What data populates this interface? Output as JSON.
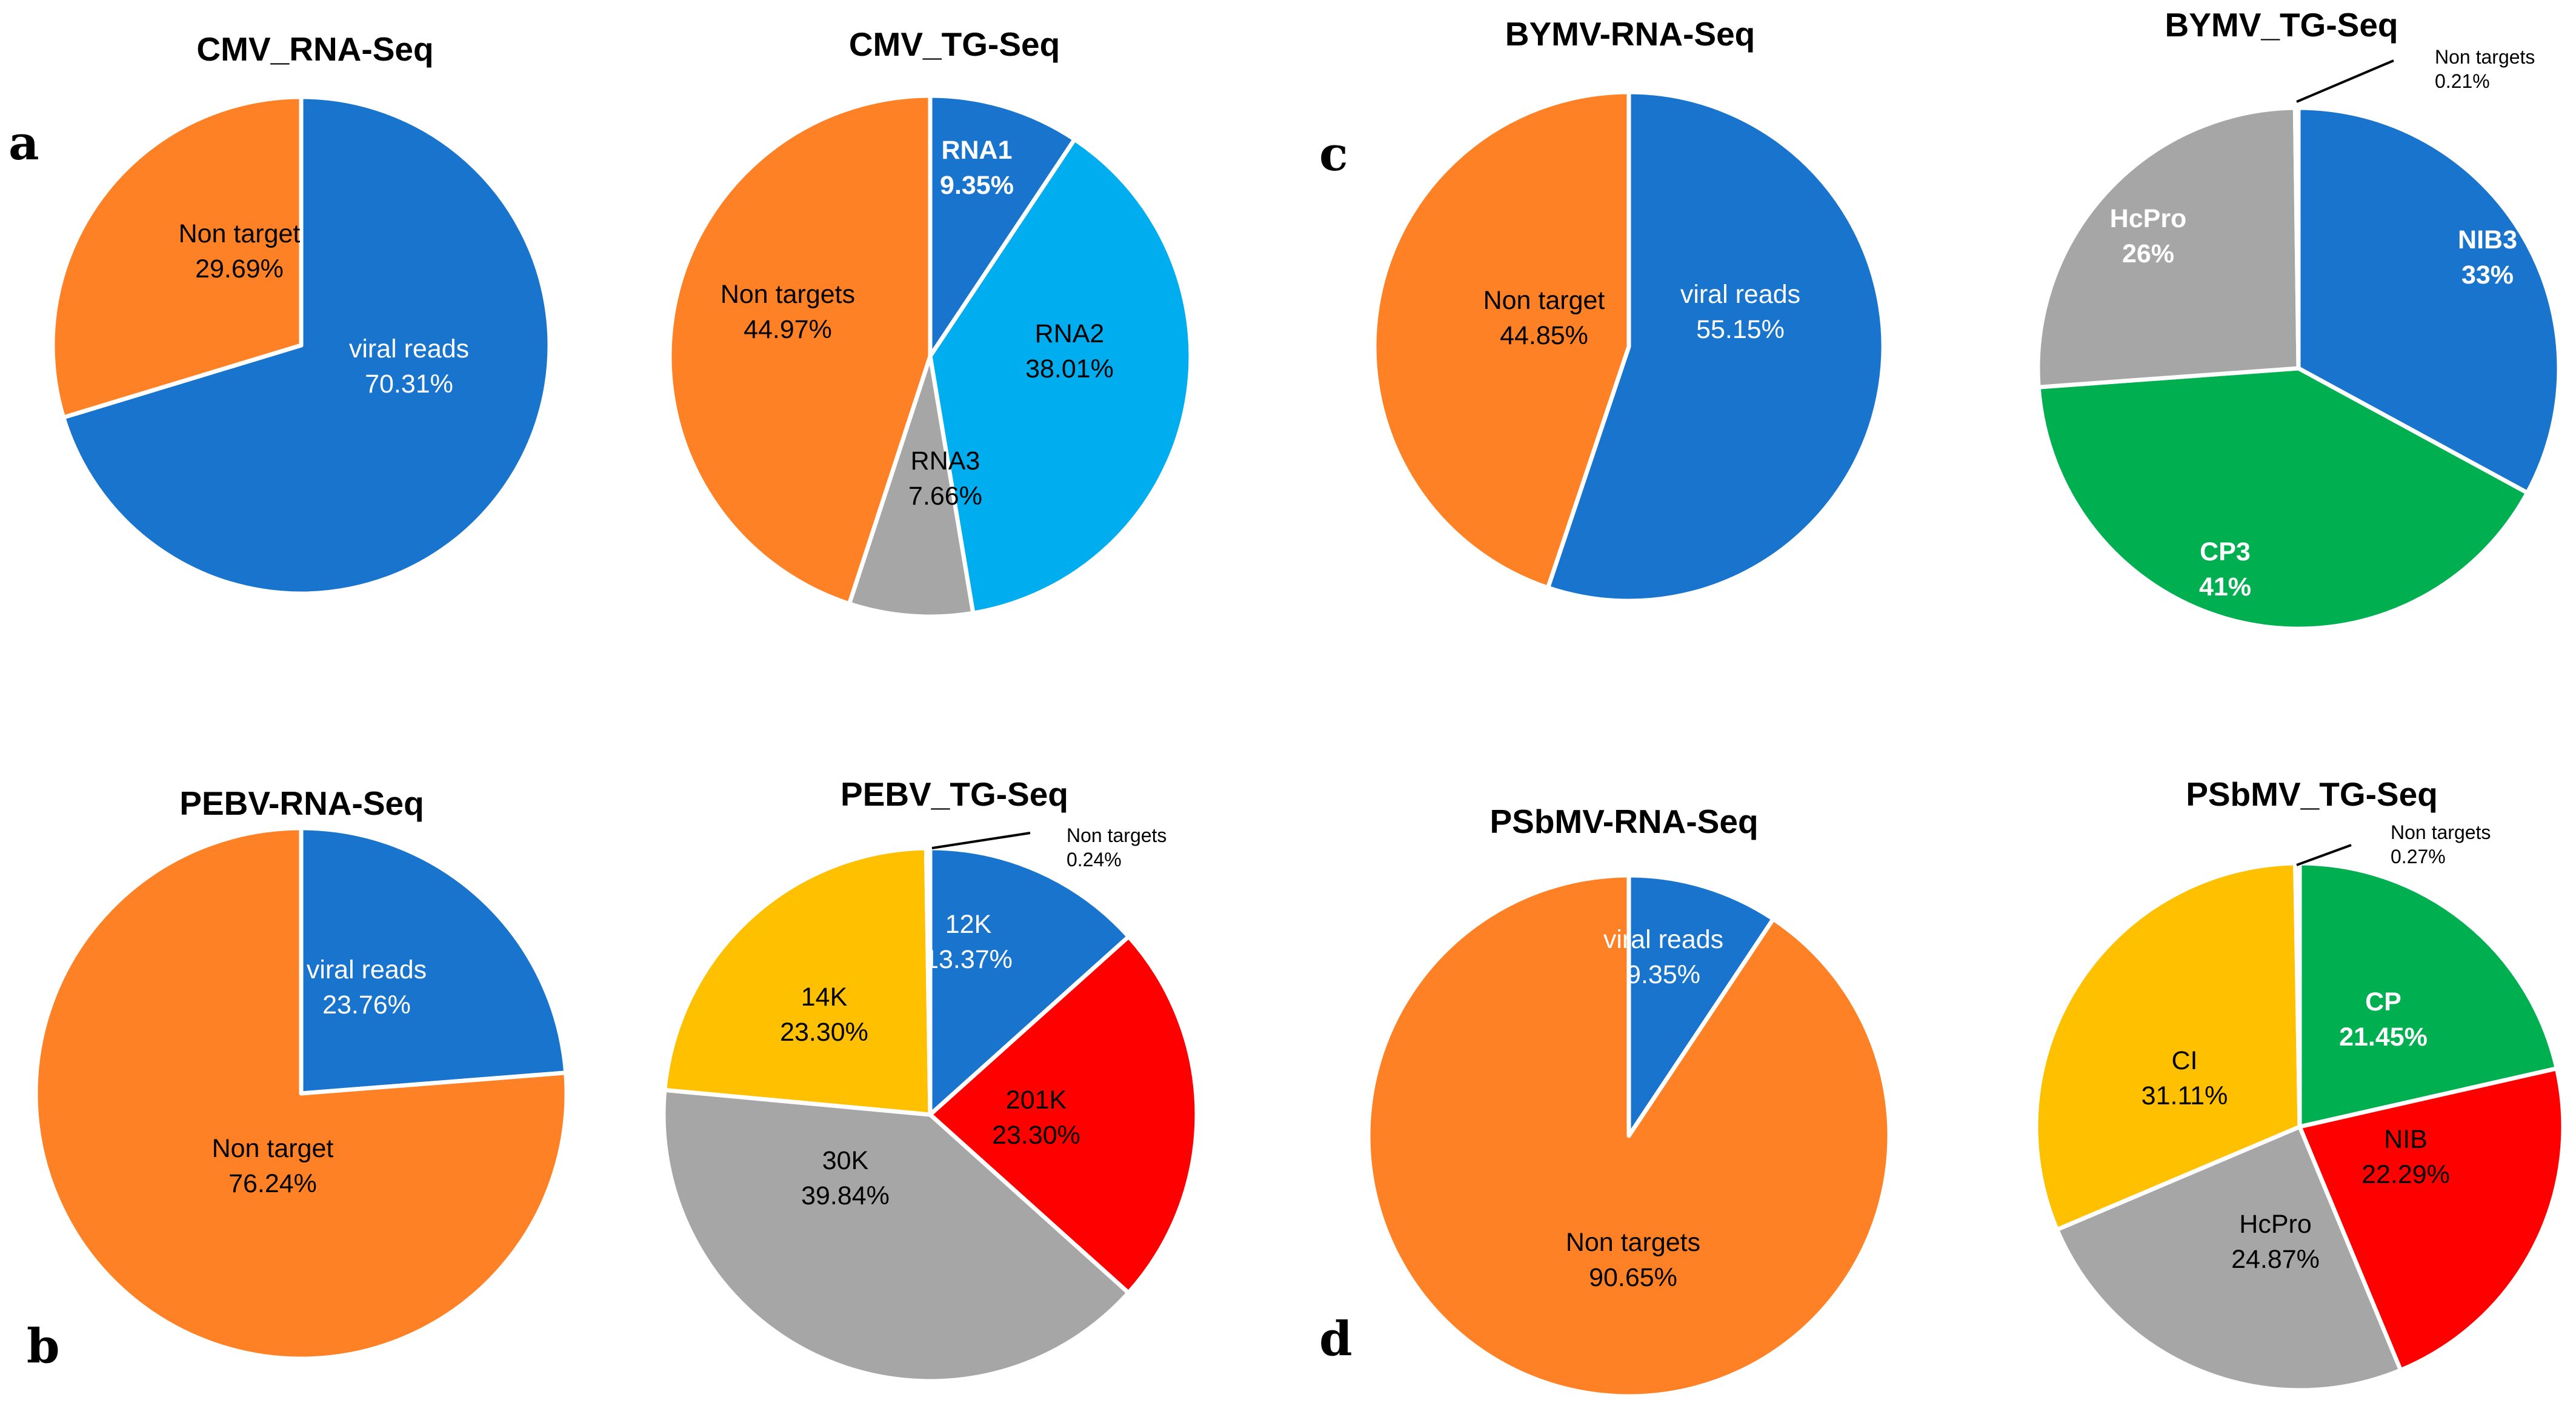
{
  "figure": {
    "panel_letters": [
      "a",
      "b",
      "c",
      "d"
    ]
  },
  "colors": {
    "blue": "#1874CD",
    "orange": "#FF8125",
    "light_blue": "#00AEEF",
    "gray": "#A6A6A6",
    "green": "#00B050",
    "red": "#FF0000",
    "yellow": "#FFC000"
  },
  "chart_data": [
    {
      "type": "pie",
      "title": "CMV_RNA-Seq",
      "panel": "a",
      "slices": [
        {
          "name": "viral reads",
          "pct_label": "70.31%",
          "value": 70.31,
          "color": "#1874CD",
          "text_color": "#ffffff",
          "bold": false
        },
        {
          "name": "Non target",
          "pct_label": "29.69%",
          "value": 29.69,
          "color": "#FF8125",
          "text_color": "#000000",
          "bold": false
        }
      ]
    },
    {
      "type": "pie",
      "title": "CMV_TG-Seq",
      "panel": "a",
      "slices": [
        {
          "name": "RNA1",
          "pct_label": "9.35%",
          "value": 9.35,
          "color": "#1874CD",
          "text_color": "#ffffff",
          "bold": true
        },
        {
          "name": "RNA2",
          "pct_label": "38.01%",
          "value": 38.01,
          "color": "#00AEEF",
          "text_color": "#000000",
          "bold": false
        },
        {
          "name": "RNA3",
          "pct_label": "7.66%",
          "value": 7.66,
          "color": "#A6A6A6",
          "text_color": "#000000",
          "bold": false
        },
        {
          "name": "Non targets",
          "pct_label": "44.97%",
          "value": 44.97,
          "color": "#FF8125",
          "text_color": "#000000",
          "bold": false
        }
      ]
    },
    {
      "type": "pie",
      "title": "BYMV-RNA-Seq",
      "panel": "c",
      "slices": [
        {
          "name": "viral reads",
          "pct_label": "55.15%",
          "value": 55.15,
          "color": "#1874CD",
          "text_color": "#ffffff",
          "bold": false
        },
        {
          "name": "Non target",
          "pct_label": "44.85%",
          "value": 44.85,
          "color": "#FF8125",
          "text_color": "#000000",
          "bold": false
        }
      ]
    },
    {
      "type": "pie",
      "title": "BYMV_TG-Seq",
      "panel": "c",
      "slices": [
        {
          "name": "NIB3",
          "pct_label": "33%",
          "value": 33,
          "color": "#1874CD",
          "text_color": "#ffffff",
          "bold": true
        },
        {
          "name": "CP3",
          "pct_label": "41%",
          "value": 41,
          "color": "#00B050",
          "text_color": "#ffffff",
          "bold": true
        },
        {
          "name": "HcPro",
          "pct_label": "26%",
          "value": 26,
          "color": "#A6A6A6",
          "text_color": "#ffffff",
          "bold": true
        },
        {
          "name": "Non targets",
          "pct_label": "0.21%",
          "value": 0.21,
          "color": "#A6A6A6",
          "text_color": "#000000",
          "bold": false,
          "callout": true
        }
      ]
    },
    {
      "type": "pie",
      "title": "PEBV-RNA-Seq",
      "panel": "b",
      "slices": [
        {
          "name": "viral reads",
          "pct_label": "23.76%",
          "value": 23.76,
          "color": "#1874CD",
          "text_color": "#ffffff",
          "bold": false
        },
        {
          "name": "Non target",
          "pct_label": "76.24%",
          "value": 76.24,
          "color": "#FF8125",
          "text_color": "#000000",
          "bold": false
        }
      ]
    },
    {
      "type": "pie",
      "title": "PEBV_TG-Seq",
      "panel": "b",
      "slices": [
        {
          "name": "12K",
          "pct_label": "13.37%",
          "value": 13.37,
          "color": "#1874CD",
          "text_color": "#ffffff",
          "bold": false
        },
        {
          "name": "201K",
          "pct_label": "23.30%",
          "value": 23.3,
          "color": "#FF0000",
          "text_color": "#000000",
          "bold": false
        },
        {
          "name": "30K",
          "pct_label": "39.84%",
          "value": 39.84,
          "color": "#A6A6A6",
          "text_color": "#000000",
          "bold": false
        },
        {
          "name": "14K",
          "pct_label": "23.30%",
          "value": 23.3,
          "color": "#FFC000",
          "text_color": "#000000",
          "bold": false
        },
        {
          "name": "Non targets",
          "pct_label": "0.24%",
          "value": 0.24,
          "color": "#FFC000",
          "text_color": "#000000",
          "bold": false,
          "callout": true
        }
      ]
    },
    {
      "type": "pie",
      "title": "PSbMV-RNA-Seq",
      "panel": "d",
      "slices": [
        {
          "name": "viral reads",
          "pct_label": "9.35%",
          "value": 9.35,
          "color": "#1874CD",
          "text_color": "#ffffff",
          "bold": false
        },
        {
          "name": "Non targets",
          "pct_label": "90.65%",
          "value": 90.65,
          "color": "#FF8125",
          "text_color": "#000000",
          "bold": false
        }
      ]
    },
    {
      "type": "pie",
      "title": "PSbMV_TG-Seq",
      "panel": "d",
      "slices": [
        {
          "name": "CP",
          "pct_label": "21.45%",
          "value": 21.45,
          "color": "#00B050",
          "text_color": "#ffffff",
          "bold": true
        },
        {
          "name": "NIB",
          "pct_label": "22.29%",
          "value": 22.29,
          "color": "#FF0000",
          "text_color": "#000000",
          "bold": false
        },
        {
          "name": "HcPro",
          "pct_label": "24.87%",
          "value": 24.87,
          "color": "#A6A6A6",
          "text_color": "#000000",
          "bold": false
        },
        {
          "name": "CI",
          "pct_label": "31.11%",
          "value": 31.11,
          "color": "#FFC000",
          "text_color": "#000000",
          "bold": false
        },
        {
          "name": "Non targets",
          "pct_label": "0.27%",
          "value": 0.27,
          "color": "#FFC000",
          "text_color": "#000000",
          "bold": false,
          "callout": true
        }
      ]
    }
  ]
}
